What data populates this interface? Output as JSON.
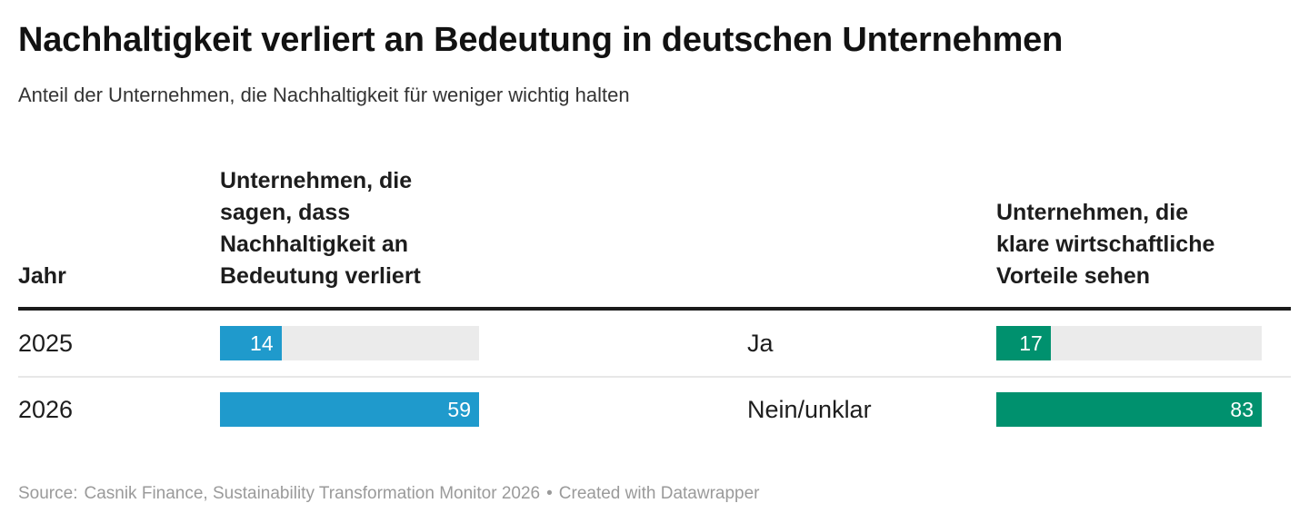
{
  "header": {
    "title": "Nachhaltigkeit verliert an Bedeutung in deutschen Unternehmen",
    "subtitle": "Anteil der Unternehmen, die Nachhaltigkeit für weniger wichtig halten"
  },
  "table": {
    "columns": {
      "year": "Jahr",
      "declining": "Unternehmen, die\nsagen, dass\nNachhaltigkeit an\nBedeutung verliert",
      "benefits": "Unternehmen, die\nklare wirtschaftliche\nVorteile sehen"
    },
    "rows": [
      {
        "year": "2025",
        "declining_value": 14,
        "answer": "Ja",
        "benefits_value": 17
      },
      {
        "year": "2026",
        "declining_value": 59,
        "answer": "Nein/unklar",
        "benefits_value": 83
      }
    ]
  },
  "chart_data": {
    "type": "bar",
    "title": "Nachhaltigkeit verliert an Bedeutung in deutschen Unternehmen",
    "subtitle": "Anteil der Unternehmen, die Nachhaltigkeit für weniger wichtig halten",
    "categories": [
      "2025",
      "2026"
    ],
    "series": [
      {
        "name": "Unternehmen, die sagen, dass Nachhaltigkeit an Bedeutung verliert",
        "values": [
          14,
          59
        ],
        "color": "#1f9acc",
        "scale_max": 59
      },
      {
        "name": "Unternehmen, die klare wirtschaftliche Vorteile sehen",
        "values": [
          17,
          83
        ],
        "color": "#00916e",
        "scale_max": 83
      }
    ],
    "row_annotations": [
      "Ja",
      "Nein/unklar"
    ],
    "value_labels": "inside-end",
    "grid": false,
    "legend_position": "none",
    "track_color": "#ebebeb"
  },
  "footer": {
    "source_prefix": "Source:",
    "source_text": "Casnik Finance, Sustainability Transformation Monitor 2026",
    "bullet": "•",
    "attribution": "Created with Datawrapper"
  },
  "colors": {
    "bar_blue": "#1f9acc",
    "bar_green": "#00916e",
    "bar_track": "#ebebeb",
    "header_rule": "#1a1a1a",
    "row_separator": "#e7e7e7",
    "title_text": "#121212",
    "body_text": "#1d1d1d",
    "source_text": "#9a9a9a"
  }
}
